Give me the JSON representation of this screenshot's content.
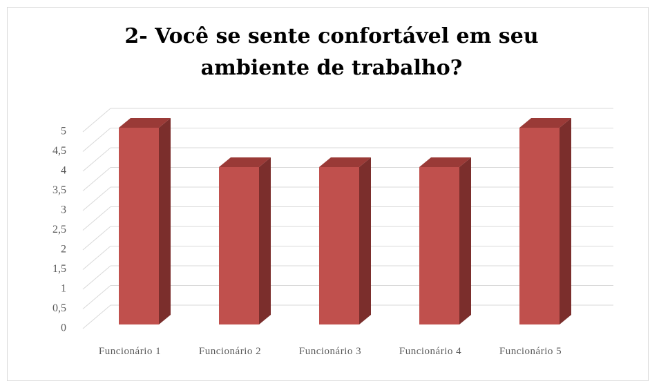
{
  "chart_data": {
    "type": "bar3d",
    "title": "2- Você se sente confortável em seu ambiente de trabalho?",
    "categories": [
      "Funcionário 1",
      "Funcionário 2",
      "Funcionário 3",
      "Funcionário 4",
      "Funcionário 5"
    ],
    "values": [
      5,
      4,
      4,
      4,
      5
    ],
    "color": "#c0504d",
    "ylim": [
      0,
      5
    ],
    "yticks": [
      0,
      {
        "value": 0.5,
        "label": "0,5"
      },
      1,
      {
        "value": 1.5,
        "label": "1,5"
      },
      2,
      {
        "value": 2.5,
        "label": "2,5"
      },
      3,
      {
        "value": 3.5,
        "label": "3,5"
      },
      4,
      {
        "value": 4.5,
        "label": "4,5"
      },
      5
    ],
    "grid": true
  }
}
